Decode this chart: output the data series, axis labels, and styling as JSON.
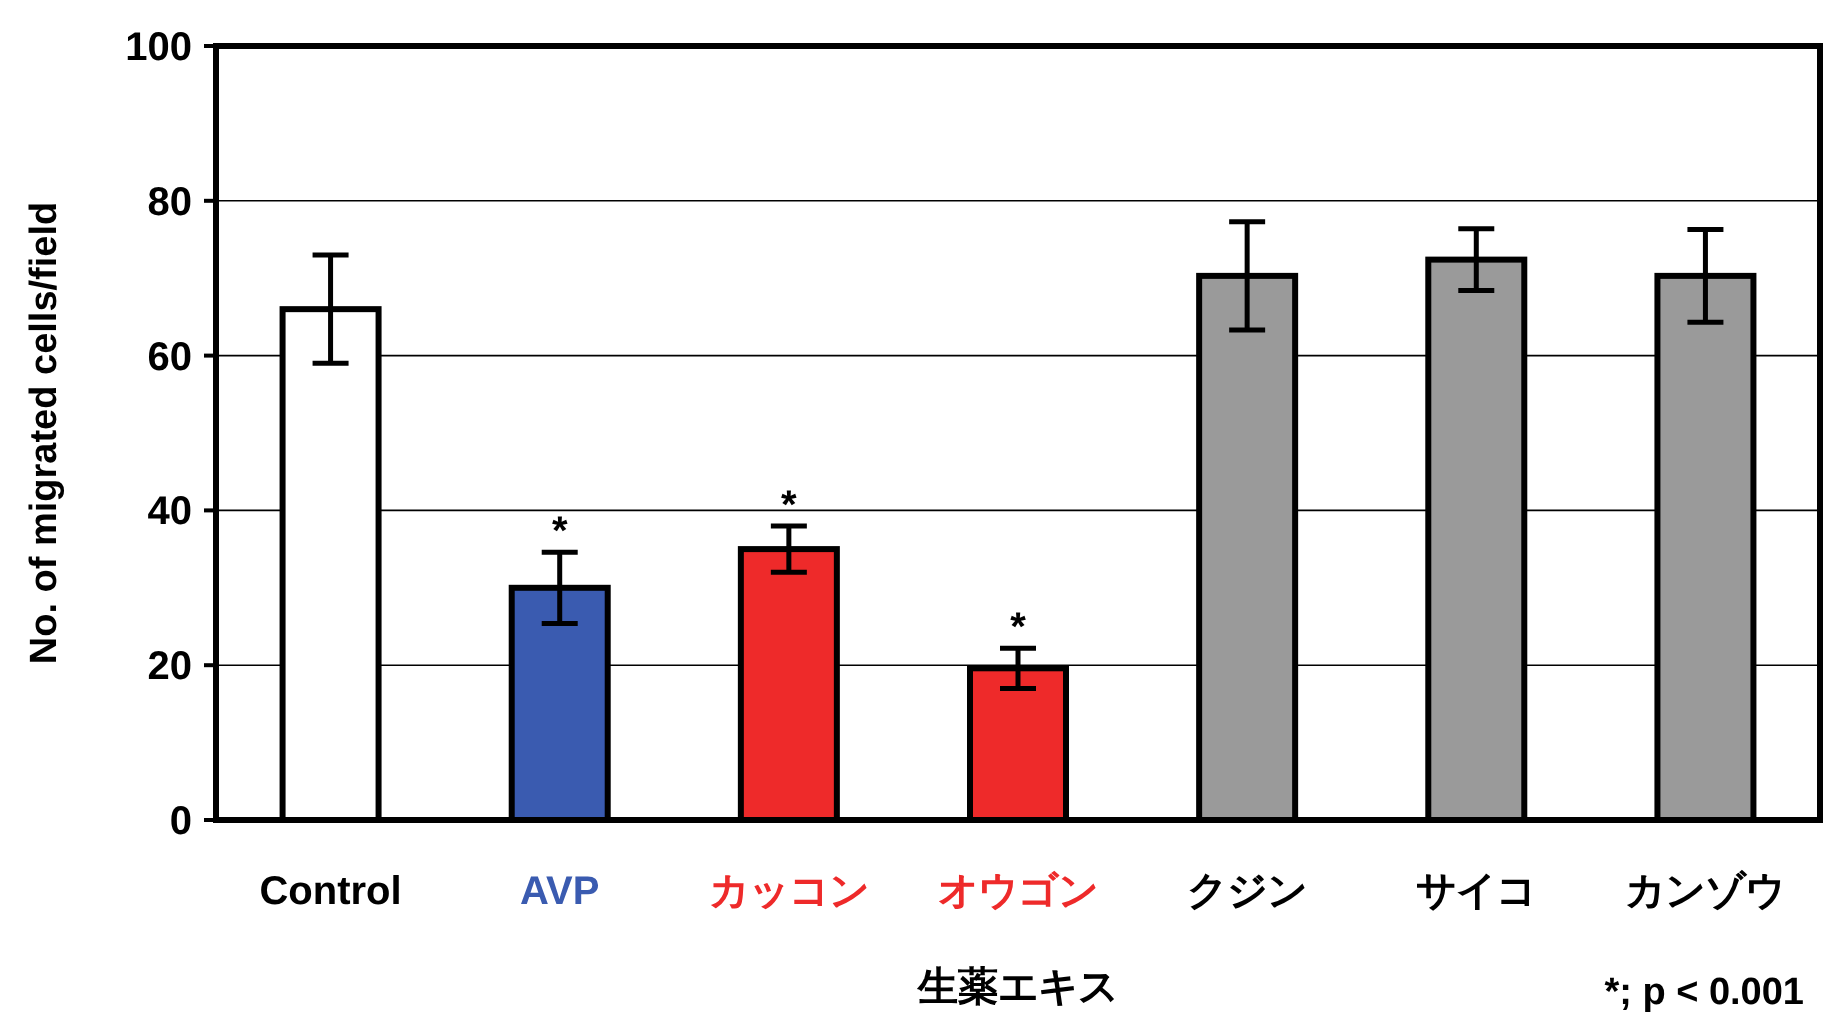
{
  "chart_data": {
    "type": "bar",
    "ylabel": "No. of migrated cells/field",
    "xlabel": "生薬エキス",
    "categories": [
      "Control",
      "AVP",
      "カッコン",
      "オウゴン",
      "クジン",
      "サイコ",
      "カンゾウ"
    ],
    "values": [
      66,
      30,
      35,
      19.6,
      70.3,
      72.4,
      70.3
    ],
    "errors": [
      7,
      4.6,
      3,
      2.6,
      7,
      4,
      6
    ],
    "colors": [
      "#ffffff",
      "#3a5bb0",
      "#ee2a2a",
      "#ee2a2a",
      "#9a9a9a",
      "#9a9a9a",
      "#9a9a9a"
    ],
    "ylim": [
      0,
      100
    ],
    "yticks": [
      0,
      20,
      40,
      60,
      80,
      100
    ],
    "grid": "y",
    "annotations": [
      {
        "text": "*",
        "x": "AVP",
        "y": 34.6
      },
      {
        "text": "*",
        "x": "カッコン",
        "y": 38
      },
      {
        "text": "*",
        "x": "オウゴン",
        "y": 22.2
      },
      "*; p < 0.001"
    ]
  }
}
